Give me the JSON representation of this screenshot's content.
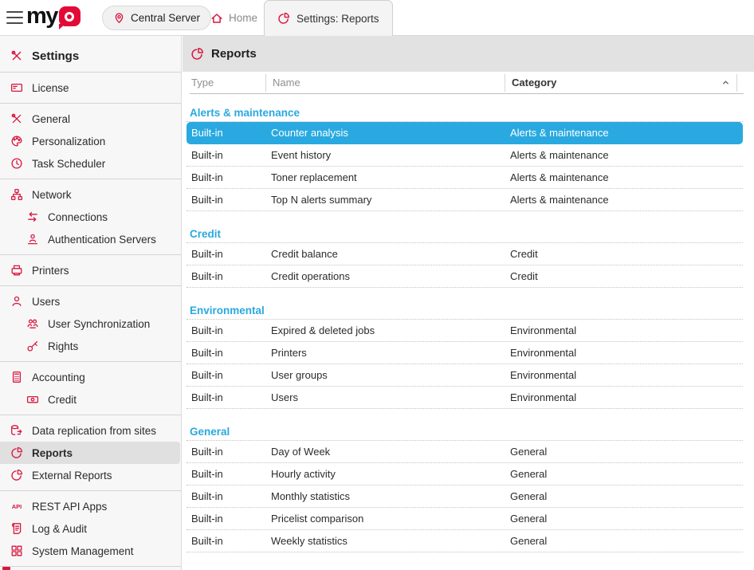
{
  "colors": {
    "accent": "#d9163f",
    "selection_blue": "#29a9e0",
    "logo_red": "#e30b36",
    "sidebar_selected": "#e0e0e0",
    "header_gray": "#e2e2e2"
  },
  "topbar": {
    "logo": {
      "text": "my",
      "bubble_letter": "Q"
    },
    "server_button": {
      "icon": "location-pin",
      "label": "Central Server"
    },
    "tabs": [
      {
        "icon": "home",
        "label": "Home",
        "active": false
      },
      {
        "icon": "pie-chart",
        "label": "Settings: Reports",
        "active": true
      }
    ]
  },
  "sidebar": {
    "title": {
      "icon": "tools",
      "label": "Settings"
    },
    "items": [
      {
        "divider": true
      },
      {
        "icon": "license-card",
        "label": "License"
      },
      {
        "divider": true
      },
      {
        "icon": "tools",
        "label": "General"
      },
      {
        "icon": "palette",
        "label": "Personalization"
      },
      {
        "icon": "clock",
        "label": "Task Scheduler"
      },
      {
        "divider": true
      },
      {
        "icon": "network",
        "label": "Network"
      },
      {
        "icon": "swap-arrows",
        "label": "Connections",
        "indent": true
      },
      {
        "icon": "auth-person",
        "label": "Authentication Servers",
        "indent": true
      },
      {
        "divider": true
      },
      {
        "icon": "printer",
        "label": "Printers"
      },
      {
        "divider": true
      },
      {
        "icon": "person",
        "label": "Users"
      },
      {
        "icon": "people-sync",
        "label": "User Synchronization",
        "indent": true
      },
      {
        "icon": "key",
        "label": "Rights",
        "indent": true
      },
      {
        "divider": true
      },
      {
        "icon": "calculator",
        "label": "Accounting"
      },
      {
        "icon": "banknote",
        "label": "Credit",
        "indent": true
      },
      {
        "divider": true
      },
      {
        "icon": "database-sync",
        "label": "Data replication from sites"
      },
      {
        "icon": "pie-chart",
        "label": "Reports",
        "selected": true
      },
      {
        "icon": "pie-chart",
        "label": "External Reports"
      },
      {
        "divider": true
      },
      {
        "icon": "api-badge",
        "label": "REST API Apps"
      },
      {
        "icon": "scroll",
        "label": "Log & Audit"
      },
      {
        "icon": "grid",
        "label": "System Management"
      },
      {
        "divider": true
      }
    ]
  },
  "main": {
    "title": {
      "icon": "pie-chart",
      "label": "Reports"
    },
    "table": {
      "columns": [
        {
          "label": "Type",
          "sorted": null
        },
        {
          "label": "Name",
          "sorted": null
        },
        {
          "label": "Category",
          "sorted": "asc"
        }
      ],
      "groups": [
        {
          "name": "Alerts & maintenance",
          "rows": [
            {
              "type": "Built-in",
              "name": "Counter analysis",
              "category": "Alerts & maintenance",
              "selected": true
            },
            {
              "type": "Built-in",
              "name": "Event history",
              "category": "Alerts & maintenance"
            },
            {
              "type": "Built-in",
              "name": "Toner replacement",
              "category": "Alerts & maintenance"
            },
            {
              "type": "Built-in",
              "name": "Top N alerts summary",
              "category": "Alerts & maintenance"
            }
          ]
        },
        {
          "name": "Credit",
          "rows": [
            {
              "type": "Built-in",
              "name": "Credit balance",
              "category": "Credit"
            },
            {
              "type": "Built-in",
              "name": "Credit operations",
              "category": "Credit"
            }
          ]
        },
        {
          "name": "Environmental",
          "rows": [
            {
              "type": "Built-in",
              "name": "Expired & deleted jobs",
              "category": "Environmental"
            },
            {
              "type": "Built-in",
              "name": "Printers",
              "category": "Environmental"
            },
            {
              "type": "Built-in",
              "name": "User groups",
              "category": "Environmental"
            },
            {
              "type": "Built-in",
              "name": "Users",
              "category": "Environmental"
            }
          ]
        },
        {
          "name": "General",
          "rows": [
            {
              "type": "Built-in",
              "name": "Day of Week",
              "category": "General"
            },
            {
              "type": "Built-in",
              "name": "Hourly activity",
              "category": "General"
            },
            {
              "type": "Built-in",
              "name": "Monthly statistics",
              "category": "General"
            },
            {
              "type": "Built-in",
              "name": "Pricelist comparison",
              "category": "General"
            },
            {
              "type": "Built-in",
              "name": "Weekly statistics",
              "category": "General"
            }
          ]
        }
      ]
    }
  }
}
